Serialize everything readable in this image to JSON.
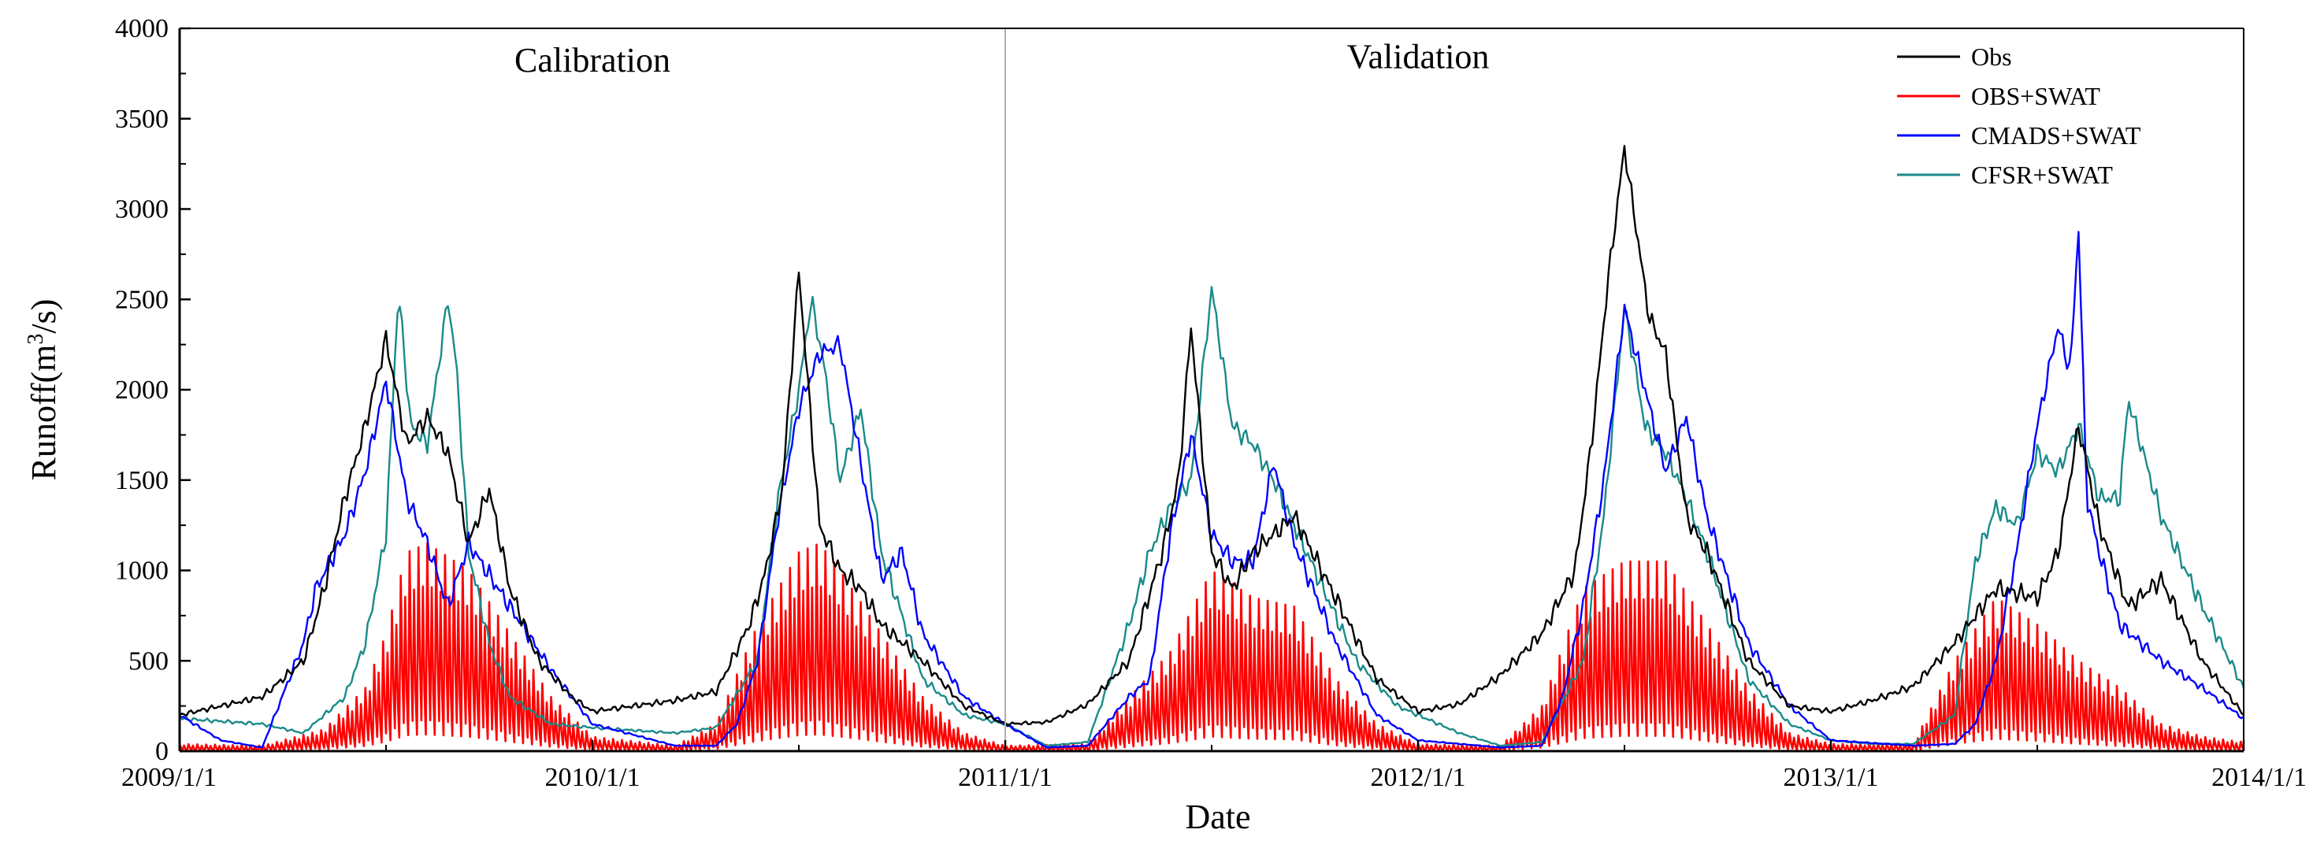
{
  "chart_data": {
    "type": "line",
    "title": "",
    "xlabel": "Date",
    "ylabel": "Runoff(m³/s)",
    "ylabel_parts": {
      "prefix": "Runoff(m",
      "superscript": "3",
      "suffix": "/s)"
    },
    "xlim": [
      2009.0,
      2014.0
    ],
    "ylim": [
      0,
      4000
    ],
    "y_ticks": [
      0,
      500,
      1000,
      1500,
      2000,
      2500,
      3000,
      3500,
      4000
    ],
    "x_ticks": [
      {
        "value": 2009.0,
        "label": "2009/1/1"
      },
      {
        "value": 2010.0,
        "label": "2010/1/1"
      },
      {
        "value": 2011.0,
        "label": "2011/1/1"
      },
      {
        "value": 2012.0,
        "label": "2012/1/1"
      },
      {
        "value": 2013.0,
        "label": "2013/1/1"
      },
      {
        "value": 2014.0,
        "label": "2014/1/1"
      }
    ],
    "grid": false,
    "legend_position": "top-right",
    "divider": {
      "x": 2011.0,
      "color": "#b0b0b0"
    },
    "annotations": [
      {
        "text": "Calibration",
        "x": 2010.0,
        "y": 3760
      },
      {
        "text": "Validation",
        "x": 2012.0,
        "y": 3780
      }
    ],
    "series": [
      {
        "name": "Obs",
        "color": "#000000",
        "x": [
          2009.0,
          2009.1,
          2009.2,
          2009.3,
          2009.35,
          2009.4,
          2009.45,
          2009.5,
          2009.55,
          2009.6,
          2009.65,
          2009.7,
          2009.75,
          2009.8,
          2009.87,
          2009.95,
          2010.0,
          2010.2,
          2010.3,
          2010.38,
          2010.42,
          2010.46,
          2010.5,
          2010.55,
          2010.6,
          2010.65,
          2010.7,
          2010.8,
          2010.9,
          2011.0,
          2011.1,
          2011.2,
          2011.3,
          2011.38,
          2011.42,
          2011.45,
          2011.5,
          2011.55,
          2011.6,
          2011.7,
          2011.8,
          2011.9,
          2012.0,
          2012.1,
          2012.2,
          2012.3,
          2012.38,
          2012.42,
          2012.46,
          2012.5,
          2012.56,
          2012.6,
          2012.65,
          2012.7,
          2012.8,
          2012.9,
          2013.0,
          2013.1,
          2013.2,
          2013.3,
          2013.4,
          2013.5,
          2013.55,
          2013.6,
          2013.65,
          2013.72,
          2013.8,
          2013.9,
          2014.0
        ],
        "y": [
          200,
          250,
          300,
          500,
          900,
          1400,
          1800,
          2280,
          1700,
          1850,
          1650,
          1150,
          1450,
          900,
          500,
          300,
          220,
          280,
          330,
          700,
          1000,
          1450,
          2660,
          1250,
          1000,
          900,
          700,
          500,
          250,
          150,
          160,
          260,
          500,
          1100,
          1500,
          2350,
          1100,
          900,
          1100,
          1300,
          850,
          400,
          220,
          260,
          420,
          650,
          1000,
          1700,
          2600,
          3340,
          2400,
          2200,
          1300,
          1100,
          500,
          250,
          220,
          280,
          360,
          600,
          900,
          850,
          1100,
          1800,
          1250,
          800,
          950,
          500,
          200
        ]
      },
      {
        "name": "OBS+SWAT",
        "color": "#ff0000",
        "x": [
          2009.0,
          2009.2,
          2009.35,
          2009.45,
          2009.5,
          2009.55,
          2009.6,
          2009.7,
          2009.8,
          2009.9,
          2010.0,
          2010.2,
          2010.3,
          2010.4,
          2010.5,
          2010.55,
          2010.6,
          2010.7,
          2010.8,
          2010.9,
          2011.0,
          2011.2,
          2011.4,
          2011.5,
          2011.6,
          2011.7,
          2011.8,
          2011.9,
          2012.0,
          2012.2,
          2012.3,
          2012.4,
          2012.5,
          2012.6,
          2012.7,
          2012.8,
          2012.9,
          2013.0,
          2013.2,
          2013.3,
          2013.4,
          2013.5,
          2013.6,
          2013.7,
          2013.8,
          2013.9,
          2014.0
        ],
        "y": [
          40,
          30,
          120,
          350,
          650,
          1100,
          1150,
          1000,
          650,
          300,
          80,
          30,
          150,
          700,
          1100,
          1150,
          1000,
          650,
          300,
          100,
          30,
          40,
          550,
          1000,
          850,
          800,
          400,
          150,
          40,
          30,
          250,
          900,
          1050,
          1050,
          700,
          350,
          100,
          40,
          40,
          500,
          850,
          700,
          500,
          350,
          150,
          80,
          50
        ],
        "oscillating": true
      },
      {
        "name": "CMADS+SWAT",
        "color": "#0000ff",
        "x": [
          2009.0,
          2009.1,
          2009.2,
          2009.3,
          2009.33,
          2009.4,
          2009.45,
          2009.5,
          2009.55,
          2009.6,
          2009.65,
          2009.7,
          2009.8,
          2009.9,
          2010.0,
          2010.2,
          2010.3,
          2010.35,
          2010.4,
          2010.45,
          2010.5,
          2010.55,
          2010.6,
          2010.7,
          2010.75,
          2010.8,
          2010.9,
          2011.0,
          2011.1,
          2011.2,
          2011.3,
          2011.35,
          2011.4,
          2011.45,
          2011.5,
          2011.55,
          2011.6,
          2011.65,
          2011.7,
          2011.8,
          2011.9,
          2012.0,
          2012.2,
          2012.3,
          2012.35,
          2012.4,
          2012.45,
          2012.5,
          2012.55,
          2012.6,
          2012.65,
          2012.7,
          2012.8,
          2012.9,
          2013.0,
          2013.2,
          2013.3,
          2013.35,
          2013.4,
          2013.45,
          2013.5,
          2013.55,
          2013.58,
          2013.6,
          2013.62,
          2013.65,
          2013.7,
          2013.8,
          2013.9,
          2014.0
        ],
        "y": [
          200,
          60,
          20,
          600,
          900,
          1200,
          1550,
          2050,
          1400,
          1150,
          800,
          1150,
          800,
          450,
          150,
          30,
          30,
          150,
          500,
          1300,
          1900,
          2200,
          2250,
          950,
          1100,
          650,
          300,
          150,
          20,
          30,
          300,
          400,
          1200,
          1750,
          1200,
          1050,
          1050,
          1600,
          1150,
          600,
          200,
          60,
          20,
          30,
          300,
          800,
          1500,
          2450,
          2000,
          1550,
          1850,
          1300,
          600,
          250,
          60,
          30,
          40,
          150,
          500,
          1100,
          1800,
          2350,
          2100,
          2900,
          1400,
          1100,
          700,
          500,
          350,
          180
        ],
        "display_note": "simplified trace"
      },
      {
        "name": "CFSR+SWAT",
        "color": "#1a8a8a",
        "x": [
          2009.0,
          2009.2,
          2009.3,
          2009.4,
          2009.45,
          2009.5,
          2009.53,
          2009.56,
          2009.6,
          2009.65,
          2009.67,
          2009.7,
          2009.75,
          2009.8,
          2009.9,
          2010.0,
          2010.2,
          2010.3,
          2010.4,
          2010.45,
          2010.5,
          2010.53,
          2010.56,
          2010.6,
          2010.65,
          2010.7,
          2010.8,
          2010.9,
          2011.0,
          2011.1,
          2011.2,
          2011.3,
          2011.35,
          2011.4,
          2011.45,
          2011.5,
          2011.55,
          2011.6,
          2011.65,
          2011.75,
          2011.85,
          2011.95,
          2012.1,
          2012.2,
          2012.3,
          2012.4,
          2012.45,
          2012.5,
          2012.55,
          2012.6,
          2012.65,
          2012.7,
          2012.8,
          2012.9,
          2013.0,
          2013.1,
          2013.2,
          2013.3,
          2013.35,
          2013.4,
          2013.45,
          2013.5,
          2013.55,
          2013.6,
          2013.65,
          2013.7,
          2013.72,
          2013.8,
          2013.9,
          2014.0
        ],
        "y": [
          180,
          150,
          100,
          300,
          600,
          1200,
          2550,
          1800,
          1700,
          2500,
          2150,
          1100,
          600,
          300,
          150,
          130,
          100,
          130,
          500,
          1400,
          2000,
          2500,
          2150,
          1500,
          1900,
          1100,
          400,
          200,
          150,
          30,
          50,
          700,
          1100,
          1350,
          1500,
          2560,
          1800,
          1700,
          1500,
          1000,
          500,
          250,
          100,
          30,
          50,
          500,
          1300,
          2460,
          1800,
          1650,
          1400,
          1100,
          400,
          150,
          60,
          40,
          40,
          200,
          1050,
          1350,
          1250,
          1650,
          1550,
          1800,
          1400,
          1400,
          1950,
          1300,
          800,
          350
        ],
        "display_note": "simplified trace"
      }
    ]
  }
}
